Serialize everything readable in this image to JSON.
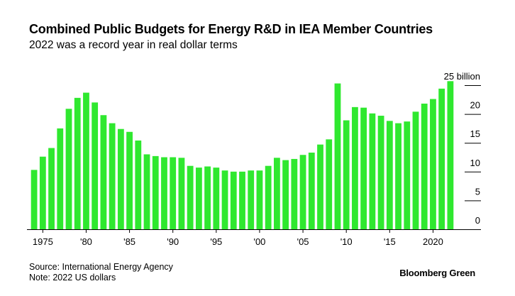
{
  "header": {
    "title": "Combined Public Budgets for Energy R&D in IEA Member Countries",
    "subtitle": "2022 was a record year in real dollar terms"
  },
  "footer": {
    "source": "Source: International Energy Agency",
    "note": "Note: 2022 US dollars",
    "brand": "Bloomberg Green"
  },
  "colors": {
    "bar": "#2fe82f",
    "axis": "#000000",
    "grid": "#d9d9d9"
  },
  "chart_data": {
    "type": "bar",
    "title": "Combined Public Budgets for Energy R&D in IEA Member Countries",
    "subtitle": "2022 was a record year in real dollar terms",
    "xlabel": "",
    "ylabel": "",
    "ylim": [
      0,
      25
    ],
    "yticks": [
      0,
      5,
      10,
      15,
      20,
      25
    ],
    "ytick_labels": [
      "0",
      "5",
      "10",
      "15",
      "20",
      "25 billion"
    ],
    "xlim": [
      1974,
      2022
    ],
    "xticks": [
      1975,
      1980,
      1985,
      1990,
      1995,
      2000,
      2005,
      2010,
      2015,
      2020
    ],
    "xtick_labels": [
      "1975",
      "'80",
      "'85",
      "'90",
      "'95",
      "'00",
      "'05",
      "'10",
      "'15",
      "2020"
    ],
    "grid": false,
    "legend": "none",
    "x": [
      1974,
      1975,
      1976,
      1977,
      1978,
      1979,
      1980,
      1981,
      1982,
      1983,
      1984,
      1985,
      1986,
      1987,
      1988,
      1989,
      1990,
      1991,
      1992,
      1993,
      1994,
      1995,
      1996,
      1997,
      1998,
      1999,
      2000,
      2001,
      2002,
      2003,
      2004,
      2005,
      2006,
      2007,
      2008,
      2009,
      2010,
      2011,
      2012,
      2013,
      2014,
      2015,
      2016,
      2017,
      2018,
      2019,
      2020,
      2021,
      2022
    ],
    "values": [
      10.3,
      12.6,
      14.1,
      17.5,
      20.9,
      22.8,
      23.7,
      22.0,
      19.8,
      18.4,
      17.4,
      16.9,
      15.4,
      13.0,
      12.7,
      12.5,
      12.5,
      12.4,
      11.0,
      10.7,
      10.9,
      10.7,
      10.2,
      10.0,
      10.0,
      10.2,
      10.2,
      11.0,
      12.4,
      12.0,
      12.2,
      12.9,
      13.3,
      14.7,
      15.6,
      25.3,
      18.9,
      21.2,
      21.1,
      20.1,
      19.7,
      18.8,
      18.4,
      18.7,
      20.4,
      21.8,
      22.6,
      24.4,
      25.7
    ]
  }
}
